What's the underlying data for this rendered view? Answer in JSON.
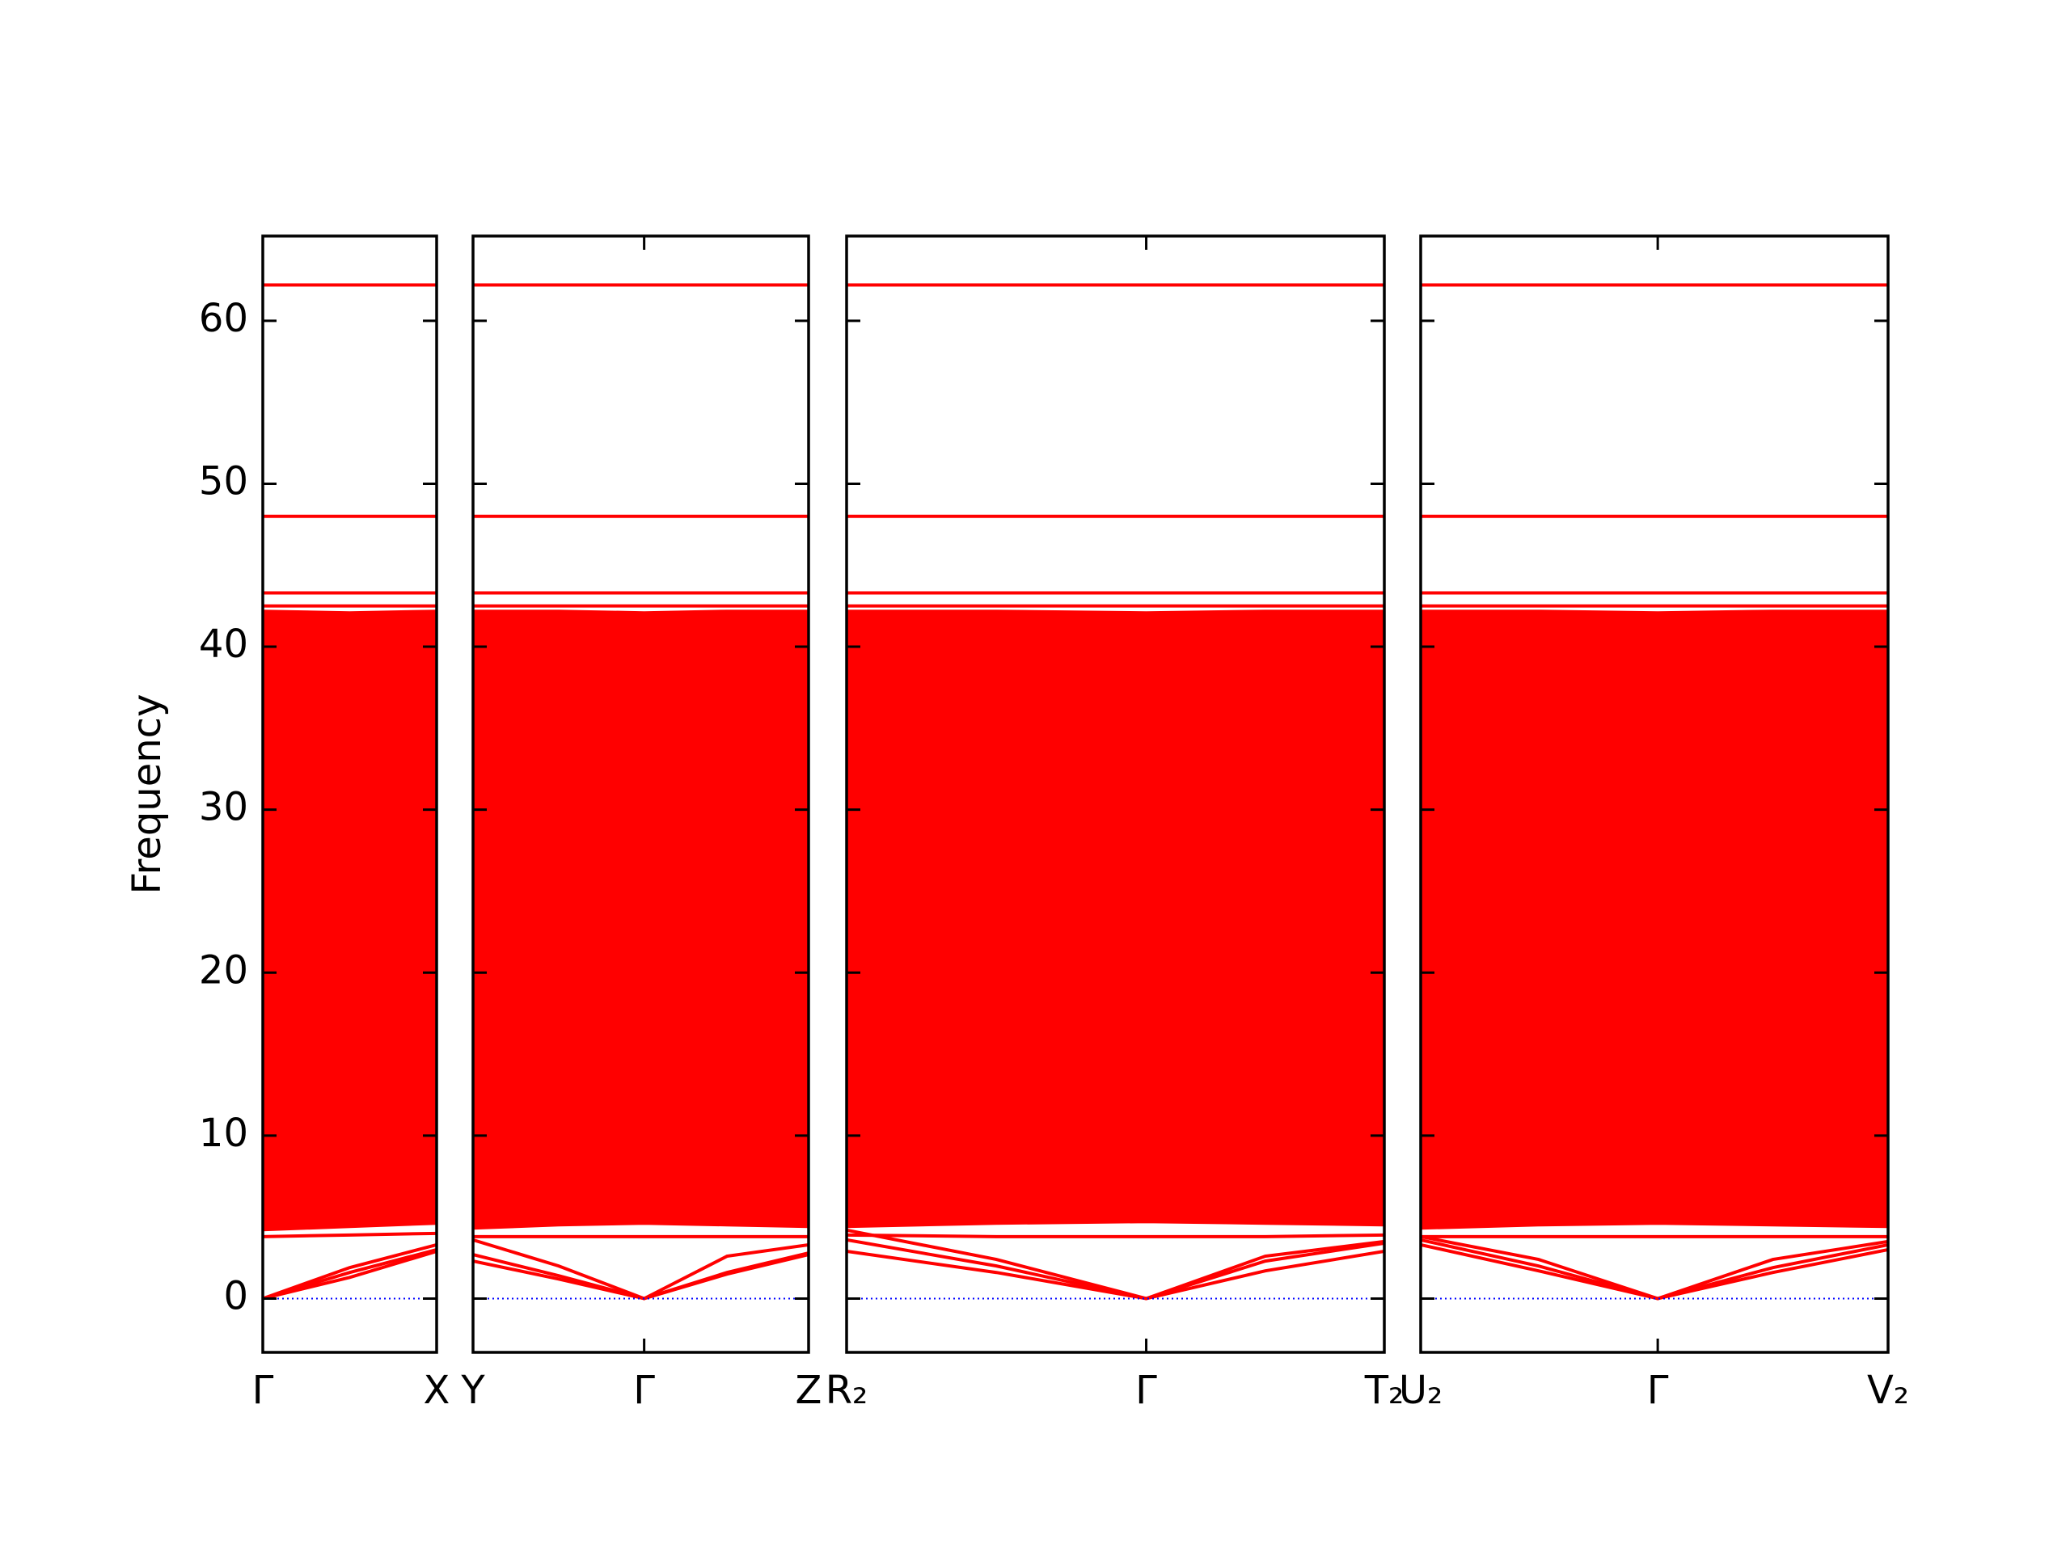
{
  "chart_data": [
    {
      "type": "line",
      "ylabel": "Frequency",
      "show_ytick_labels": true,
      "x": [
        0,
        0.65,
        1.3
      ],
      "xlim": [
        0,
        1.3
      ],
      "xticks": [
        {
          "value": 0,
          "label": "Γ"
        },
        {
          "value": 1.3,
          "label": "X"
        }
      ],
      "ylim": [
        -3.3,
        65.2
      ],
      "yticks": [
        0,
        10,
        20,
        30,
        40,
        50,
        60
      ],
      "hline": {
        "value": 0,
        "color": "#0000ff",
        "style": "dotted"
      },
      "area": {
        "color": "#ff0000",
        "values_low": [
          4.2,
          4.4,
          4.6
        ],
        "values_high": [
          42.2,
          42.1,
          42.2
        ]
      },
      "series": [
        {
          "color": "#ff0000",
          "values": [
            62.2,
            62.2,
            62.2
          ]
        },
        {
          "color": "#ff0000",
          "values": [
            48.0,
            48.0,
            48.0
          ]
        },
        {
          "color": "#ff0000",
          "values": [
            43.3,
            43.3,
            43.3
          ]
        },
        {
          "color": "#ff0000",
          "values": [
            42.5,
            42.5,
            42.5
          ]
        },
        {
          "color": "#ff0000",
          "values": [
            3.8,
            3.9,
            4.0
          ]
        },
        {
          "color": "#ff0000",
          "values": [
            0,
            1.6,
            3.0
          ]
        },
        {
          "color": "#ff0000",
          "values": [
            0,
            1.9,
            3.3
          ]
        },
        {
          "color": "#ff0000",
          "values": [
            0,
            1.3,
            2.9
          ]
        }
      ]
    },
    {
      "type": "line",
      "show_ytick_labels": false,
      "x": [
        0,
        0.64,
        1.28,
        1.9,
        2.51
      ],
      "xlim": [
        0,
        2.51
      ],
      "xticks": [
        {
          "value": 0,
          "label": "Y"
        },
        {
          "value": 1.28,
          "label": "Γ"
        },
        {
          "value": 2.51,
          "label": "Z"
        }
      ],
      "ylim": [
        -3.3,
        65.2
      ],
      "yticks": [
        0,
        10,
        20,
        30,
        40,
        50,
        60
      ],
      "hline": {
        "value": 0,
        "color": "#0000ff",
        "style": "dotted"
      },
      "area": {
        "color": "#ff0000",
        "values_low": [
          4.3,
          4.5,
          4.6,
          4.5,
          4.4
        ],
        "values_high": [
          42.2,
          42.2,
          42.1,
          42.2,
          42.2
        ]
      },
      "series": [
        {
          "color": "#ff0000",
          "values": [
            62.2,
            62.2,
            62.2,
            62.2,
            62.2
          ]
        },
        {
          "color": "#ff0000",
          "values": [
            48.0,
            48.0,
            48.0,
            48.0,
            48.0
          ]
        },
        {
          "color": "#ff0000",
          "values": [
            43.3,
            43.3,
            43.3,
            43.3,
            43.3
          ]
        },
        {
          "color": "#ff0000",
          "values": [
            42.5,
            42.5,
            42.5,
            42.5,
            42.5
          ]
        },
        {
          "color": "#ff0000",
          "values": [
            3.8,
            3.8,
            3.8,
            3.8,
            3.8
          ]
        },
        {
          "color": "#ff0000",
          "values": [
            2.7,
            1.4,
            0,
            1.6,
            2.8
          ]
        },
        {
          "color": "#ff0000",
          "values": [
            2.3,
            1.2,
            0,
            1.5,
            2.7
          ]
        },
        {
          "color": "#ff0000",
          "values": [
            3.6,
            2.0,
            0,
            2.6,
            3.3
          ]
        }
      ]
    },
    {
      "type": "line",
      "show_ytick_labels": false,
      "x": [
        0,
        1.12,
        2.24,
        3.13,
        4.02
      ],
      "xlim": [
        0,
        4.02
      ],
      "xticks": [
        {
          "value": 0,
          "label": "R₂"
        },
        {
          "value": 2.24,
          "label": "Γ"
        },
        {
          "value": 4.02,
          "label": "T₂"
        }
      ],
      "ylim": [
        -3.3,
        65.2
      ],
      "yticks": [
        0,
        10,
        20,
        30,
        40,
        50,
        60
      ],
      "hline": {
        "value": 0,
        "color": "#0000ff",
        "style": "dotted"
      },
      "area": {
        "color": "#ff0000",
        "values_low": [
          4.4,
          4.6,
          4.7,
          4.6,
          4.5
        ],
        "values_high": [
          42.2,
          42.2,
          42.1,
          42.2,
          42.2
        ]
      },
      "series": [
        {
          "color": "#ff0000",
          "values": [
            62.2,
            62.2,
            62.2,
            62.2,
            62.2
          ]
        },
        {
          "color": "#ff0000",
          "values": [
            48.0,
            48.0,
            48.0,
            48.0,
            48.0
          ]
        },
        {
          "color": "#ff0000",
          "values": [
            43.3,
            43.3,
            43.3,
            43.3,
            43.3
          ]
        },
        {
          "color": "#ff0000",
          "values": [
            42.5,
            42.5,
            42.5,
            42.5,
            42.5
          ]
        },
        {
          "color": "#ff0000",
          "values": [
            3.9,
            3.8,
            3.8,
            3.8,
            3.9
          ]
        },
        {
          "color": "#ff0000",
          "values": [
            2.9,
            1.6,
            0,
            1.7,
            2.9
          ]
        },
        {
          "color": "#ff0000",
          "values": [
            3.6,
            2.0,
            0,
            2.3,
            3.4
          ]
        },
        {
          "color": "#ff0000",
          "values": [
            4.2,
            2.4,
            0,
            2.6,
            3.5
          ]
        }
      ]
    },
    {
      "type": "line",
      "show_ytick_labels": false,
      "x": [
        0,
        0.88,
        1.77,
        2.63,
        3.49
      ],
      "xlim": [
        0,
        3.49
      ],
      "xticks": [
        {
          "value": 0,
          "label": "U₂"
        },
        {
          "value": 1.77,
          "label": "Γ"
        },
        {
          "value": 3.49,
          "label": "V₂"
        }
      ],
      "ylim": [
        -3.3,
        65.2
      ],
      "yticks": [
        0,
        10,
        20,
        30,
        40,
        50,
        60
      ],
      "hline": {
        "value": 0,
        "color": "#0000ff",
        "style": "dotted"
      },
      "area": {
        "color": "#ff0000",
        "values_low": [
          4.3,
          4.5,
          4.6,
          4.5,
          4.4
        ],
        "values_high": [
          42.2,
          42.2,
          42.1,
          42.2,
          42.2
        ]
      },
      "series": [
        {
          "color": "#ff0000",
          "values": [
            62.2,
            62.2,
            62.2,
            62.2,
            62.2
          ]
        },
        {
          "color": "#ff0000",
          "values": [
            48.0,
            48.0,
            48.0,
            48.0,
            48.0
          ]
        },
        {
          "color": "#ff0000",
          "values": [
            43.3,
            43.3,
            43.3,
            43.3,
            43.3
          ]
        },
        {
          "color": "#ff0000",
          "values": [
            42.5,
            42.5,
            42.5,
            42.5,
            42.5
          ]
        },
        {
          "color": "#ff0000",
          "values": [
            3.8,
            3.8,
            3.8,
            3.8,
            3.8
          ]
        },
        {
          "color": "#ff0000",
          "values": [
            3.3,
            1.7,
            0,
            1.6,
            3.0
          ]
        },
        {
          "color": "#ff0000",
          "values": [
            3.6,
            2.0,
            0,
            1.9,
            3.3
          ]
        },
        {
          "color": "#ff0000",
          "values": [
            3.8,
            2.4,
            0,
            2.4,
            3.5
          ]
        }
      ]
    }
  ]
}
